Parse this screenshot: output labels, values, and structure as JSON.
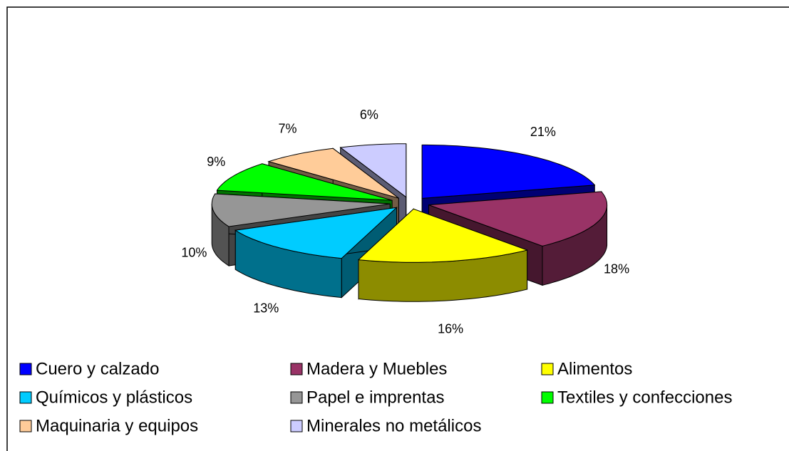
{
  "chart_data": {
    "type": "pie",
    "categories": [
      "Cuero y calzado",
      "Madera y Muebles",
      "Alimentos",
      "Químicos y plásticos",
      "Papel e imprentas",
      "Textiles y confecciones",
      "Maquinaria y equipos",
      "Minerales no metálicos"
    ],
    "values": [
      21,
      18,
      16,
      13,
      10,
      9,
      7,
      6
    ],
    "value_labels": [
      "21%",
      "18%",
      "16%",
      "13%",
      "10%",
      "9%",
      "7%",
      "6%"
    ],
    "colors": [
      "#0000ff",
      "#993366",
      "#ffff00",
      "#00ccff",
      "#969696",
      "#00ff00",
      "#ffcc99",
      "#ccccff"
    ],
    "legend": "bottom"
  }
}
